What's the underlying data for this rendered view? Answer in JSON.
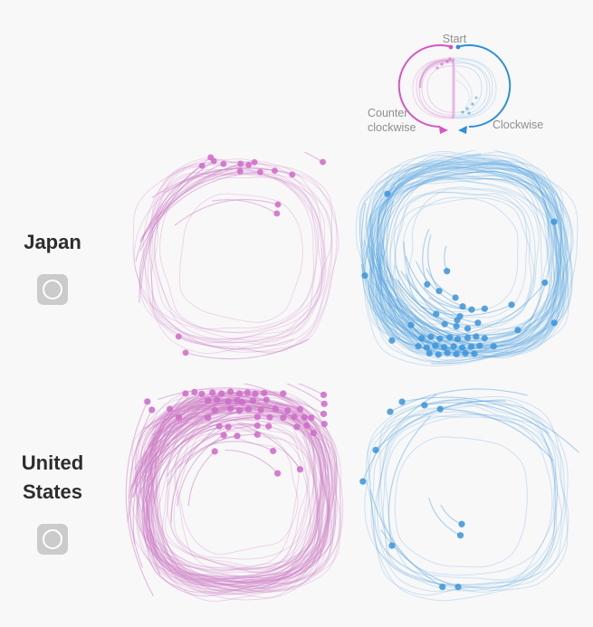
{
  "app": {
    "background": "#f8f8f8"
  },
  "colors": {
    "pink": "#cf6cc9",
    "pink_line": "#cd7ec6",
    "pink_strong": "#d855c2",
    "blue": "#3f96db",
    "blue_line": "#5ea8e2",
    "blue_strong": "#2f8fd8",
    "label_gray": "#8f8f8f",
    "title_text": "#2d2d2d",
    "button_bg": "#cbcbcb",
    "button_ring": "#ffffff"
  },
  "legend": {
    "start": "Start",
    "counterclockwise_line1": "Counter",
    "counterclockwise_line2": "clockwise",
    "clockwise": "Clockwise"
  },
  "rows": [
    {
      "label": "Japan"
    },
    {
      "label": "United States"
    }
  ],
  "chart_data": {
    "type": "line",
    "subtype": "small-multiples-loop-trajectories",
    "rows": [
      "Japan",
      "United States"
    ],
    "columns": [
      "Counter clockwise",
      "Clockwise"
    ],
    "panels": [
      {
        "country": "Japan",
        "direction": "counterclockwise",
        "color": "#cf6cc9",
        "line_color": "#cd7ec6",
        "loop_count": 15,
        "seed": 3,
        "endpoints": [
          [
            0.38,
            0.025
          ],
          [
            0.395,
            0.042
          ],
          [
            0.44,
            0.056
          ],
          [
            0.34,
            0.064
          ],
          [
            0.52,
            0.055
          ],
          [
            0.558,
            0.061
          ],
          [
            0.585,
            0.048
          ],
          [
            0.518,
            0.09
          ],
          [
            0.612,
            0.094
          ],
          [
            0.68,
            0.088
          ],
          [
            0.762,
            0.106
          ],
          [
            0.905,
            0.047
          ],
          [
            0.695,
            0.246
          ],
          [
            0.69,
            0.288
          ],
          [
            0.23,
            0.864
          ],
          [
            0.263,
            0.94
          ]
        ]
      },
      {
        "country": "Japan",
        "direction": "clockwise",
        "color": "#3f96db",
        "line_color": "#5ea8e2",
        "loop_count": 58,
        "seed": 5,
        "endpoints": [
          [
            0.145,
            0.198
          ],
          [
            0.887,
            0.324
          ],
          [
            0.044,
            0.568
          ],
          [
            0.41,
            0.548
          ],
          [
            0.322,
            0.608
          ],
          [
            0.375,
            0.638
          ],
          [
            0.448,
            0.668
          ],
          [
            0.48,
            0.708
          ],
          [
            0.698,
            0.7
          ],
          [
            0.846,
            0.6
          ],
          [
            0.888,
            0.782
          ],
          [
            0.25,
            0.792
          ],
          [
            0.165,
            0.862
          ],
          [
            0.456,
            0.77
          ],
          [
            0.726,
            0.815
          ],
          [
            0.4,
            0.788
          ],
          [
            0.452,
            0.798
          ],
          [
            0.502,
            0.808
          ],
          [
            0.548,
            0.782
          ],
          [
            0.468,
            0.752
          ],
          [
            0.52,
            0.722
          ],
          [
            0.362,
            0.742
          ],
          [
            0.578,
            0.718
          ],
          [
            0.298,
            0.852
          ],
          [
            0.338,
            0.846
          ],
          [
            0.378,
            0.854
          ],
          [
            0.422,
            0.848
          ],
          [
            0.458,
            0.856
          ],
          [
            0.502,
            0.85
          ],
          [
            0.54,
            0.844
          ],
          [
            0.578,
            0.852
          ],
          [
            0.282,
            0.888
          ],
          [
            0.32,
            0.894
          ],
          [
            0.358,
            0.886
          ],
          [
            0.398,
            0.892
          ],
          [
            0.44,
            0.888
          ],
          [
            0.478,
            0.894
          ],
          [
            0.518,
            0.89
          ],
          [
            0.556,
            0.886
          ],
          [
            0.618,
            0.888
          ],
          [
            0.332,
            0.92
          ],
          [
            0.372,
            0.926
          ],
          [
            0.412,
            0.918
          ],
          [
            0.452,
            0.924
          ],
          [
            0.492,
            0.92
          ],
          [
            0.532,
            0.922
          ]
        ]
      },
      {
        "country": "United States",
        "direction": "counterclockwise",
        "color": "#cf6cc9",
        "line_color": "#cd7ec6",
        "loop_count": 68,
        "seed": 9,
        "endpoints": [
          [
            0.27,
            0.044
          ],
          [
            0.31,
            0.038
          ],
          [
            0.342,
            0.046
          ],
          [
            0.39,
            0.04
          ],
          [
            0.43,
            0.044
          ],
          [
            0.47,
            0.036
          ],
          [
            0.51,
            0.044
          ],
          [
            0.546,
            0.04
          ],
          [
            0.58,
            0.046
          ],
          [
            0.62,
            0.042
          ],
          [
            0.705,
            0.044
          ],
          [
            0.37,
            0.076
          ],
          [
            0.41,
            0.072
          ],
          [
            0.46,
            0.08
          ],
          [
            0.5,
            0.074
          ],
          [
            0.522,
            0.082
          ],
          [
            0.57,
            0.076
          ],
          [
            0.63,
            0.072
          ],
          [
            0.4,
            0.118
          ],
          [
            0.47,
            0.112
          ],
          [
            0.51,
            0.12
          ],
          [
            0.55,
            0.114
          ],
          [
            0.605,
            0.118
          ],
          [
            0.67,
            0.112
          ],
          [
            0.725,
            0.12
          ],
          [
            0.78,
            0.114
          ],
          [
            0.24,
            0.15
          ],
          [
            0.37,
            0.152
          ],
          [
            0.59,
            0.148
          ],
          [
            0.645,
            0.15
          ],
          [
            0.705,
            0.152
          ],
          [
            0.754,
            0.148
          ],
          [
            0.8,
            0.15
          ],
          [
            0.83,
            0.152
          ],
          [
            0.42,
            0.19
          ],
          [
            0.46,
            0.193
          ],
          [
            0.59,
            0.187
          ],
          [
            0.64,
            0.19
          ],
          [
            0.766,
            0.193
          ],
          [
            0.81,
            0.187
          ],
          [
            0.44,
            0.23
          ],
          [
            0.5,
            0.233
          ],
          [
            0.59,
            0.227
          ],
          [
            0.66,
            0.3
          ],
          [
            0.4,
            0.302
          ],
          [
            0.885,
            0.05
          ],
          [
            0.888,
            0.09
          ],
          [
            0.885,
            0.135
          ],
          [
            0.888,
            0.18
          ],
          [
            0.84,
            0.22
          ],
          [
            0.1,
            0.08
          ],
          [
            0.12,
            0.117
          ],
          [
            0.2,
            0.113
          ],
          [
            0.68,
            0.4
          ],
          [
            0.78,
            0.382
          ]
        ]
      },
      {
        "country": "United States",
        "direction": "clockwise",
        "color": "#3f96db",
        "line_color": "#5ea8e2",
        "loop_count": 12,
        "seed": 13,
        "endpoints": [
          [
            0.21,
            0.065
          ],
          [
            0.157,
            0.109
          ],
          [
            0.31,
            0.08
          ],
          [
            0.38,
            0.097
          ],
          [
            0.093,
            0.28
          ],
          [
            0.036,
            0.42
          ],
          [
            0.476,
            0.61
          ],
          [
            0.47,
            0.66
          ],
          [
            0.165,
            0.706
          ],
          [
            0.39,
            0.89
          ],
          [
            0.46,
            0.89
          ]
        ]
      }
    ]
  }
}
